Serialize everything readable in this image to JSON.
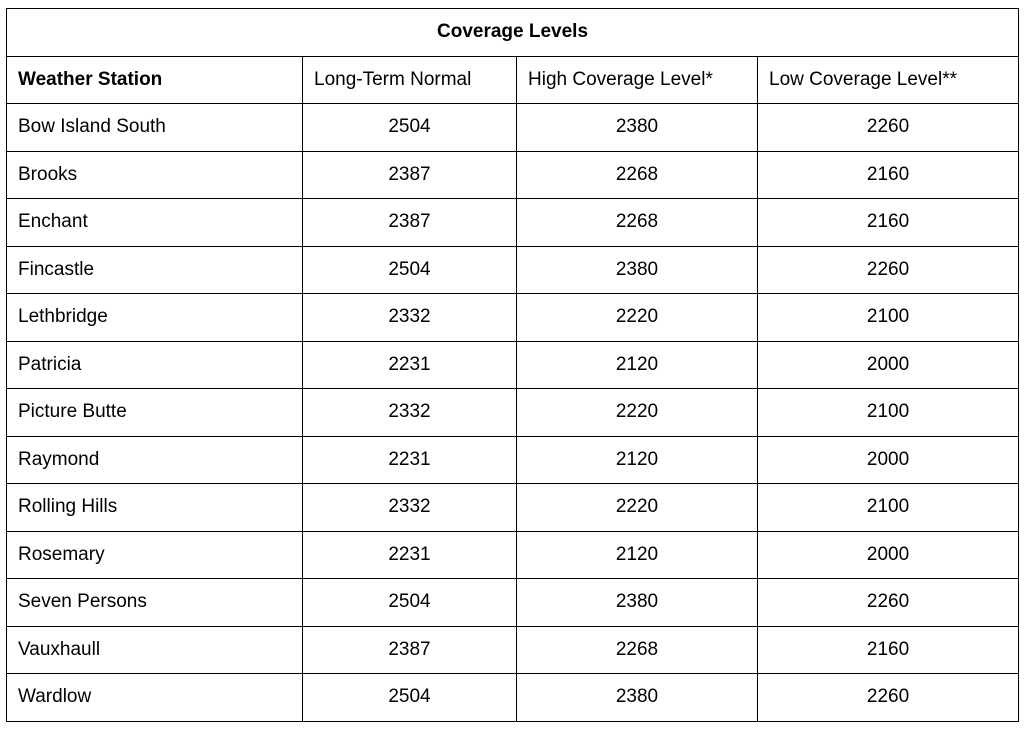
{
  "table": {
    "title": "Coverage Levels",
    "headers": [
      "Weather Station",
      "Long-Term Normal",
      "High Coverage Level*",
      "Low Coverage Level**"
    ],
    "rows": [
      [
        "Bow Island South",
        "2504",
        "2380",
        "2260"
      ],
      [
        "Brooks",
        "2387",
        "2268",
        "2160"
      ],
      [
        "Enchant",
        "2387",
        "2268",
        "2160"
      ],
      [
        "Fincastle",
        "2504",
        "2380",
        "2260"
      ],
      [
        "Lethbridge",
        "2332",
        "2220",
        "2100"
      ],
      [
        "Patricia",
        "2231",
        "2120",
        "2000"
      ],
      [
        "Picture Butte",
        "2332",
        "2220",
        "2100"
      ],
      [
        "Raymond",
        "2231",
        "2120",
        "2000"
      ],
      [
        "Rolling Hills",
        "2332",
        "2220",
        "2100"
      ],
      [
        "Rosemary",
        "2231",
        "2120",
        "2000"
      ],
      [
        "Seven Persons",
        "2504",
        "2380",
        "2260"
      ],
      [
        "Vauxhaull",
        "2387",
        "2268",
        "2160"
      ],
      [
        "Wardlow",
        "2504",
        "2380",
        "2260"
      ]
    ]
  }
}
